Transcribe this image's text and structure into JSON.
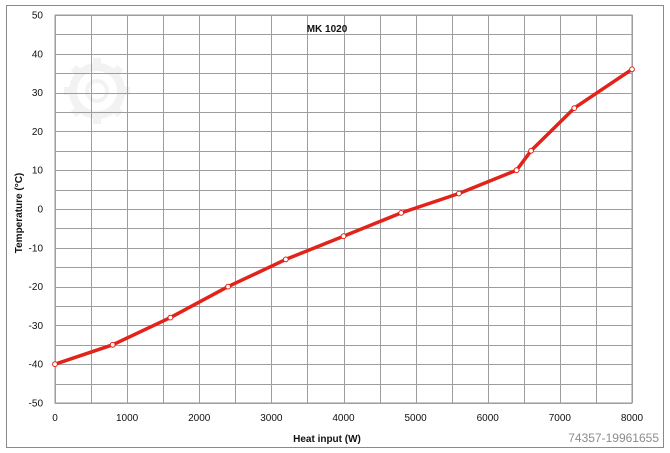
{
  "chart_data": {
    "type": "line",
    "title": "MK 1020",
    "xlabel": "Heat input (W)",
    "ylabel": "Temperature (°C)",
    "xlim": [
      0,
      8000
    ],
    "ylim": [
      -50,
      50
    ],
    "x_ticks": [
      0,
      1000,
      2000,
      3000,
      4000,
      5000,
      6000,
      7000,
      8000
    ],
    "y_ticks": [
      -50,
      -40,
      -30,
      -20,
      -10,
      0,
      10,
      20,
      30,
      40,
      50
    ],
    "grid": true,
    "legend": "none",
    "series": [
      {
        "color": "#e2231a",
        "x": [
          0,
          800,
          1600,
          2400,
          3200,
          4000,
          4800,
          5600,
          6400,
          6600,
          7200,
          8000
        ],
        "y": [
          -40,
          -35,
          -28,
          -20,
          -13,
          -7,
          -1,
          4,
          10,
          15,
          26,
          36
        ]
      }
    ]
  },
  "watermark": {
    "text": "74357-19961655"
  }
}
